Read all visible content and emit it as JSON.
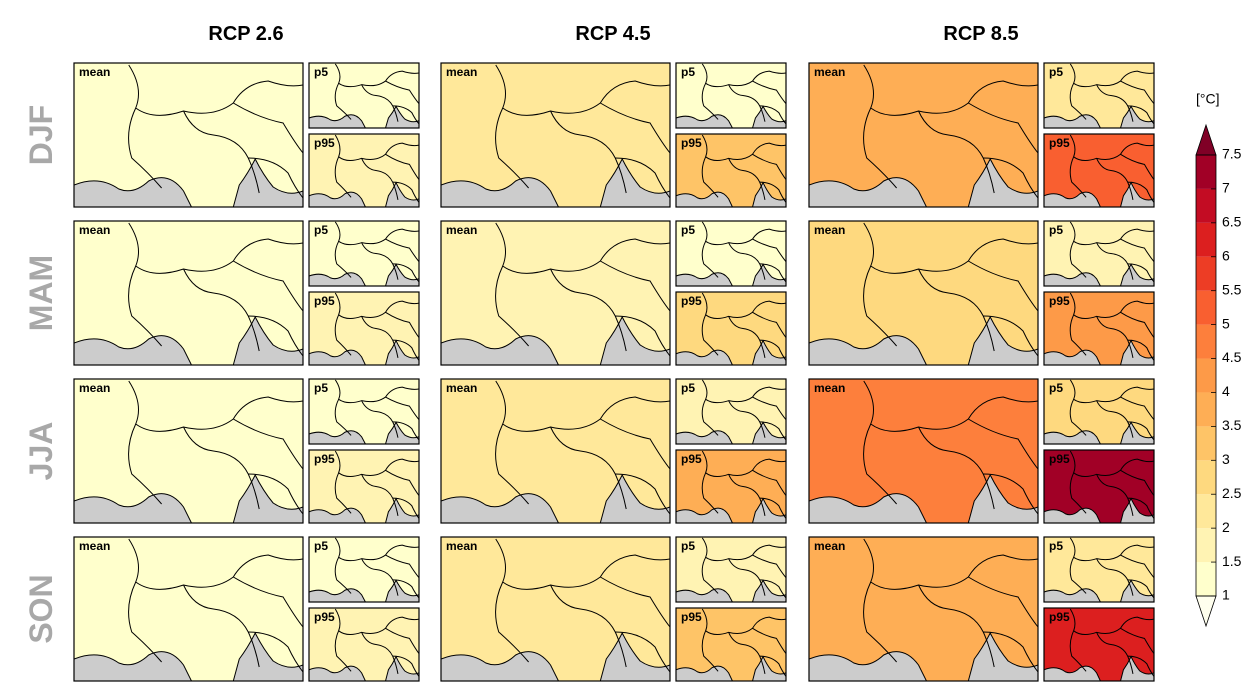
{
  "chart_data": {
    "type": "map-grid",
    "columns": [
      "RCP 2.6",
      "RCP 4.5",
      "RCP 8.5"
    ],
    "rows": [
      "DJF",
      "MAM",
      "JJA",
      "SON"
    ],
    "panel_labels": [
      "mean",
      "p5",
      "p95"
    ],
    "values": [
      [
        [
          1.3,
          1.1,
          1.8
        ],
        [
          2.0,
          1.3,
          3.0
        ],
        [
          3.5,
          2.0,
          5.0
        ]
      ],
      [
        [
          1.1,
          1.0,
          1.5
        ],
        [
          1.6,
          1.2,
          2.5
        ],
        [
          2.6,
          1.6,
          4.0
        ]
      ],
      [
        [
          1.4,
          1.2,
          1.8
        ],
        [
          2.3,
          1.6,
          3.5
        ],
        [
          4.5,
          2.6,
          7.0
        ]
      ],
      [
        [
          1.3,
          1.1,
          1.7
        ],
        [
          2.0,
          1.5,
          3.3
        ],
        [
          3.8,
          2.2,
          6.0
        ]
      ]
    ],
    "colorbar": {
      "label": "[°C]",
      "lim": [
        1,
        7.5
      ],
      "ticks": [
        1,
        1.5,
        2,
        2.5,
        3,
        3.5,
        4,
        4.5,
        5,
        5.5,
        6,
        6.5,
        7,
        7.5
      ],
      "colors": [
        "#ffffcc",
        "#fff3b3",
        "#ffe89a",
        "#fed97f",
        "#fec467",
        "#feae55",
        "#fd9a48",
        "#fd7f3c",
        "#f95f30",
        "#ed3d25",
        "#dc1f1f",
        "#c30c23",
        "#a10026"
      ],
      "under_color": "#ffffee",
      "over_color": "#800026"
    },
    "sea_color": "#cccccc"
  }
}
